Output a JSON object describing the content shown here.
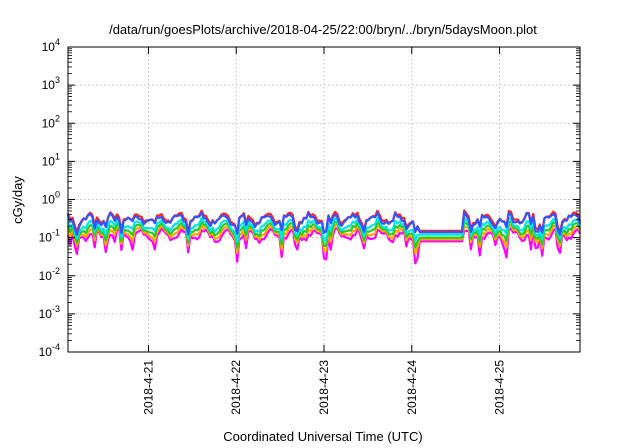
{
  "chart_data": {
    "type": "line",
    "title": "/data/run/goesPlots/archive/2018-04-25/22:00/bryn/../bryn/5daysMoon.plot",
    "xlabel": "Coordinated Universal Time (UTC)",
    "ylabel": "cGy/day",
    "yscale": "log",
    "ylim": [
      0.0001,
      10000
    ],
    "xlim": [
      "2018-04-20T02:00",
      "2018-04-25T22:00"
    ],
    "grid": true,
    "legend": "none",
    "y_ticks": [
      {
        "base": "10",
        "exp": "-4",
        "value": 0.0001
      },
      {
        "base": "10",
        "exp": "-3",
        "value": 0.001
      },
      {
        "base": "10",
        "exp": "-2",
        "value": 0.01
      },
      {
        "base": "10",
        "exp": "-1",
        "value": 0.1
      },
      {
        "base": "10",
        "exp": "0",
        "value": 1
      },
      {
        "base": "10",
        "exp": "1",
        "value": 10
      },
      {
        "base": "10",
        "exp": "2",
        "value": 100
      },
      {
        "base": "10",
        "exp": "3",
        "value": 1000
      },
      {
        "base": "10",
        "exp": "4",
        "value": 10000
      }
    ],
    "x_ticks": [
      "2018-4-21",
      "2018-4-22",
      "2018-4-23",
      "2018-4-24",
      "2018-4-25"
    ],
    "x_tick_times": [
      "2018-04-21T00:00",
      "2018-04-22T00:00",
      "2018-04-23T00:00",
      "2018-04-24T00:00",
      "2018-04-25T00:00"
    ],
    "series": [
      {
        "color": "#ff00ff",
        "base": 0.115,
        "dip_depth": 0.55
      },
      {
        "color": "#ffa500",
        "base": 0.14,
        "dip_depth": 0.4
      },
      {
        "color": "#22cc22",
        "base": 0.17,
        "dip_depth": 0.35
      },
      {
        "color": "#00e5e5",
        "base": 0.21,
        "dip_depth": 0.3
      },
      {
        "color": "#ff2020",
        "base": 0.33,
        "dip_depth": 0.3
      },
      {
        "color": "#3355ff",
        "base": 0.3,
        "dip_depth": 0.3
      }
    ],
    "flat_period": {
      "start": "2018-04-24T02:00",
      "end": "2018-04-24T14:00"
    },
    "flat_values": [
      0.08,
      0.09,
      0.1,
      0.12,
      0.15,
      0.14
    ]
  }
}
